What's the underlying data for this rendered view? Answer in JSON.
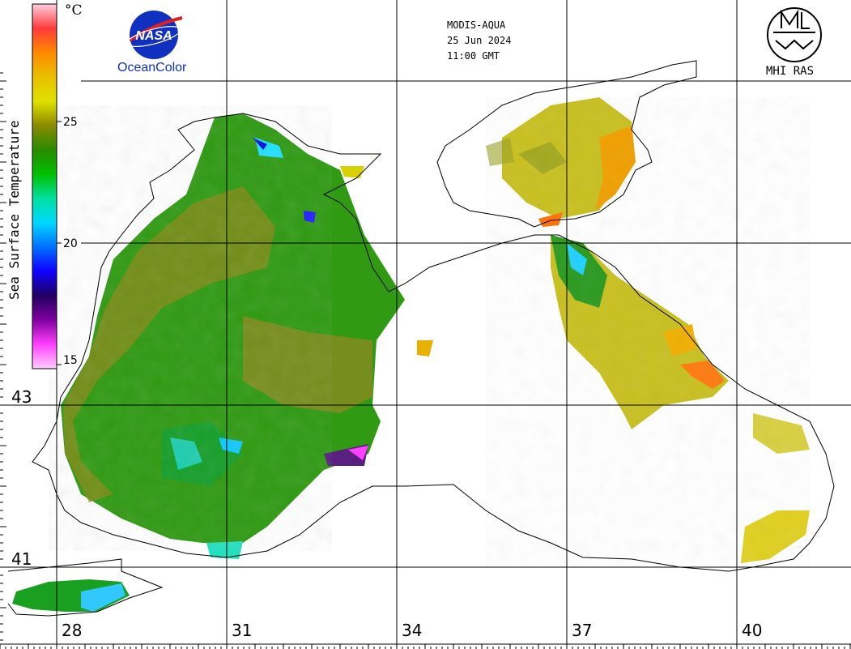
{
  "header": {
    "satellite": "MODIS-AQUA",
    "date": "25 Jun 2024",
    "time": "11:00 GMT"
  },
  "logos": {
    "nasa_text": "NASA",
    "oceancolor": "OceanColor",
    "mhi": "MHI RAS"
  },
  "colorbar": {
    "title": "Sea Surface Temperature",
    "unit": "°C",
    "ticks": [
      "25",
      "20",
      "15"
    ],
    "stops": [
      "#ffd0e0",
      "#ff3a3a",
      "#ff8a00",
      "#e8c000",
      "#e0e000",
      "#8a8a00",
      "#2a8a00",
      "#00c000",
      "#00e0a0",
      "#00d8ff",
      "#0070ff",
      "#1000ff",
      "#200060",
      "#8000a0",
      "#ff40ff",
      "#ffd0ff"
    ]
  },
  "axes": {
    "longitude_labels": [
      "28",
      "31",
      "34",
      "37",
      "40"
    ],
    "latitude_labels": [
      "43",
      "41"
    ]
  },
  "colors": {
    "warm_sst": "#e8a000",
    "mid_sst": "#2aa000",
    "cool_sst": "#00c8ff",
    "land": "#ffffff",
    "coast": "#000000"
  }
}
